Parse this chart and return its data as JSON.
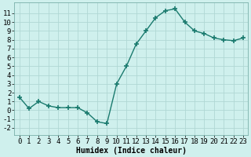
{
  "x": [
    0,
    1,
    2,
    3,
    4,
    5,
    6,
    7,
    8,
    9,
    10,
    11,
    12,
    13,
    14,
    15,
    16,
    17,
    18,
    19,
    20,
    21,
    22,
    23
  ],
  "y": [
    1.5,
    0.2,
    1.0,
    0.5,
    0.3,
    0.3,
    0.3,
    -0.3,
    -1.3,
    -1.5,
    3.0,
    5.0,
    7.5,
    9.0,
    10.5,
    11.3,
    11.5,
    10.0,
    9.0,
    8.7,
    8.2,
    8.0,
    7.9,
    8.2
  ],
  "line_color": "#1a7a6e",
  "marker": "+",
  "marker_size": 4,
  "marker_linewidth": 1.2,
  "line_width": 1.0,
  "bg_color": "#cff0ed",
  "grid_color": "#b0d8d4",
  "xlabel": "Humidex (Indice chaleur)",
  "xlabel_fontsize": 7,
  "yticks": [
    -2,
    -1,
    0,
    1,
    2,
    3,
    4,
    5,
    6,
    7,
    8,
    9,
    10,
    11
  ],
  "ylim": [
    -2.8,
    12.2
  ],
  "xlim": [
    -0.5,
    23.5
  ],
  "xticks": [
    0,
    1,
    2,
    3,
    4,
    5,
    6,
    7,
    8,
    9,
    10,
    11,
    12,
    13,
    14,
    15,
    16,
    17,
    18,
    19,
    20,
    21,
    22,
    23
  ],
  "tick_fontsize": 6.5
}
